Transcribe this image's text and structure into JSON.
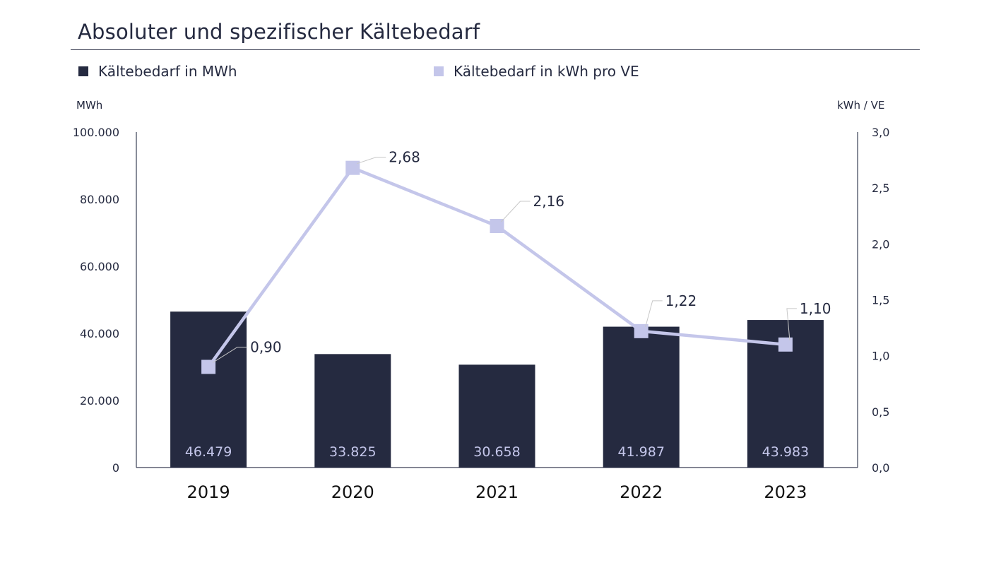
{
  "chart_data": {
    "type": "bar",
    "title": "Absoluter und spezifischer Kältebedarf",
    "categories": [
      "2019",
      "2020",
      "2021",
      "2022",
      "2023"
    ],
    "series": [
      {
        "name": "Kältebedarf in MWh",
        "type": "bar",
        "axis": "left",
        "values": [
          46479,
          33825,
          30658,
          41987,
          43983
        ],
        "labels": [
          "46.479",
          "33.825",
          "30.658",
          "41.987",
          "43.983"
        ]
      },
      {
        "name": "Kältebedarf in kWh pro VE",
        "type": "line",
        "axis": "right",
        "values": [
          0.9,
          2.68,
          2.16,
          1.22,
          1.1
        ],
        "labels": [
          "0,90",
          "2,68",
          "2,16",
          "1,22",
          "1,10"
        ]
      }
    ],
    "ylabel": "MWh",
    "ylabel_right": "kWh / VE",
    "ylim": [
      0,
      100000
    ],
    "ylim_right": [
      0,
      3.0
    ],
    "yticks": [
      "0",
      "20.000",
      "40.000",
      "60.000",
      "80.000",
      "100.000"
    ],
    "yticks_right": [
      "0,0",
      "0,5",
      "1,0",
      "1,5",
      "2,0",
      "2,5",
      "3,0"
    ],
    "grid": false,
    "legend_position": "top",
    "colors": {
      "bar": "#252a40",
      "line": "#c4c6ea",
      "text": "#252a40"
    }
  }
}
